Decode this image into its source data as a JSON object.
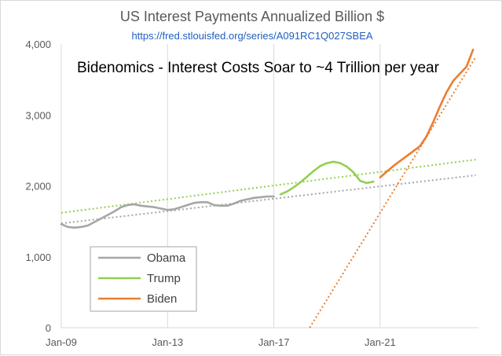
{
  "chart_data": {
    "type": "line",
    "title": "US Interest Payments Annualized Billion $",
    "subtitle": "https://fred.stlouisfed.org/series/A091RC1Q027SBEA",
    "annotation": "Bidenomics - Interest Costs Soar to ~4 Trillion per year",
    "xlabel": "",
    "ylabel": "",
    "xlim": [
      2009.0,
      2024.7
    ],
    "ylim": [
      0,
      4000
    ],
    "xticks": [
      {
        "value": 2009,
        "label": "Jan-09"
      },
      {
        "value": 2013,
        "label": "Jan-13"
      },
      {
        "value": 2017,
        "label": "Jan-17"
      },
      {
        "value": 2021,
        "label": "Jan-21"
      }
    ],
    "yticks": [
      {
        "value": 0,
        "label": "0"
      },
      {
        "value": 1000,
        "label": "1,000"
      },
      {
        "value": 2000,
        "label": "2,000"
      },
      {
        "value": 3000,
        "label": "3,000"
      },
      {
        "value": 4000,
        "label": "4,000"
      }
    ],
    "grid": {
      "x": true,
      "y": false
    },
    "legend_position": "bottom-left",
    "series": [
      {
        "name": "Obama",
        "color": "#a6a6a6",
        "x": [
          2009.0,
          2009.25,
          2009.5,
          2009.75,
          2010.0,
          2010.25,
          2010.5,
          2010.75,
          2011.0,
          2011.25,
          2011.5,
          2011.75,
          2012.0,
          2012.25,
          2012.5,
          2012.75,
          2013.0,
          2013.25,
          2013.5,
          2013.75,
          2014.0,
          2014.25,
          2014.5,
          2014.75,
          2015.0,
          2015.25,
          2015.5,
          2015.75,
          2016.0,
          2016.25,
          2016.5,
          2016.75,
          2017.0
        ],
        "values": [
          1460,
          1420,
          1410,
          1420,
          1440,
          1490,
          1540,
          1590,
          1640,
          1700,
          1730,
          1740,
          1720,
          1710,
          1700,
          1680,
          1660,
          1670,
          1700,
          1730,
          1760,
          1770,
          1770,
          1730,
          1720,
          1720,
          1750,
          1790,
          1810,
          1830,
          1840,
          1850,
          1850
        ]
      },
      {
        "name": "Trump",
        "color": "#92d050",
        "x": [
          2017.25,
          2017.5,
          2017.75,
          2018.0,
          2018.25,
          2018.5,
          2018.75,
          2019.0,
          2019.25,
          2019.5,
          2019.75,
          2020.0,
          2020.25,
          2020.5,
          2020.75
        ],
        "values": [
          1880,
          1920,
          1980,
          2050,
          2130,
          2210,
          2280,
          2320,
          2340,
          2320,
          2270,
          2190,
          2070,
          2040,
          2060
        ]
      },
      {
        "name": "Biden",
        "color": "#ed7d31",
        "x": [
          2021.0,
          2021.25,
          2021.5,
          2021.75,
          2022.0,
          2022.25,
          2022.5,
          2022.75,
          2023.0,
          2023.25,
          2023.5,
          2023.75,
          2024.0,
          2024.25,
          2024.5
        ],
        "values": [
          2120,
          2200,
          2280,
          2350,
          2420,
          2490,
          2560,
          2700,
          2900,
          3120,
          3320,
          3480,
          3580,
          3680,
          3920
        ]
      }
    ],
    "trendlines": [
      {
        "of": "Obama",
        "color": "#a6a6a6",
        "x": [
          2009.0,
          2024.6
        ],
        "values": [
          1470,
          2150
        ]
      },
      {
        "of": "Trump",
        "color": "#92d050",
        "x": [
          2009.0,
          2024.6
        ],
        "values": [
          1620,
          2370
        ]
      },
      {
        "of": "Biden",
        "color": "#ed7d31",
        "x": [
          2018.35,
          2024.6
        ],
        "values": [
          0,
          3820
        ]
      }
    ]
  }
}
